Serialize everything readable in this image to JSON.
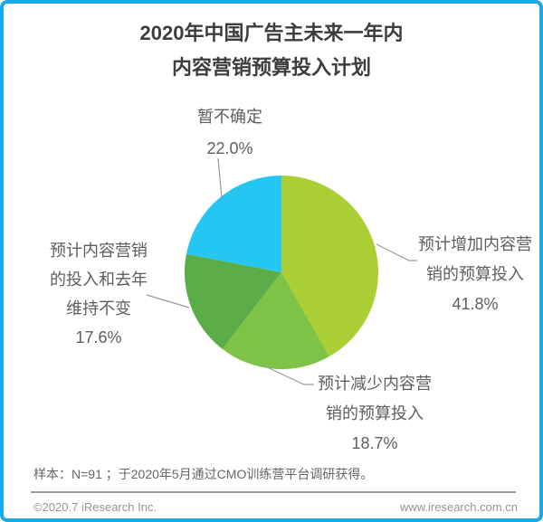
{
  "header": {
    "title_line1": "2020年中国广告主未来一年内",
    "title_line2": "内容营销预算投入计划"
  },
  "chart_data": {
    "type": "pie",
    "title": "2020年中国广告主未来一年内内容营销预算投入计划",
    "start_angle_deg": -90,
    "direction": "clockwise",
    "segments": [
      {
        "label": "预计增加内容营销的预算投入",
        "display_lines": [
          "预计增加内容营",
          "销的预算投入"
        ],
        "value": 41.8,
        "pct_label": "41.8%",
        "color": "#A9CF35"
      },
      {
        "label": "预计减少内容营销的预算投入",
        "display_lines": [
          "预计减少内容营",
          "销的预算投入"
        ],
        "value": 18.7,
        "pct_label": "18.7%",
        "color": "#7EC345"
      },
      {
        "label": "预计内容营销的投入和去年维持不变",
        "display_lines": [
          "预计内容营销",
          "的投入和去年",
          "维持不变"
        ],
        "value": 17.6,
        "pct_label": "17.6%",
        "color": "#5BAD48"
      },
      {
        "label": "暂不确定",
        "display_lines": [
          "暂不确定"
        ],
        "value": 22.0,
        "pct_label": "22.0%",
        "color": "#26C6F2"
      }
    ]
  },
  "footnote": {
    "text": "样本：N=91 ；于2020年5月通过CMO训练营平台调研获得。"
  },
  "footer": {
    "copyright": "©2020.7 iResearch Inc.",
    "website": "www.iresearch.com.cn"
  },
  "colors": {
    "border": "#18A9EA",
    "leader_line": "#999999"
  }
}
